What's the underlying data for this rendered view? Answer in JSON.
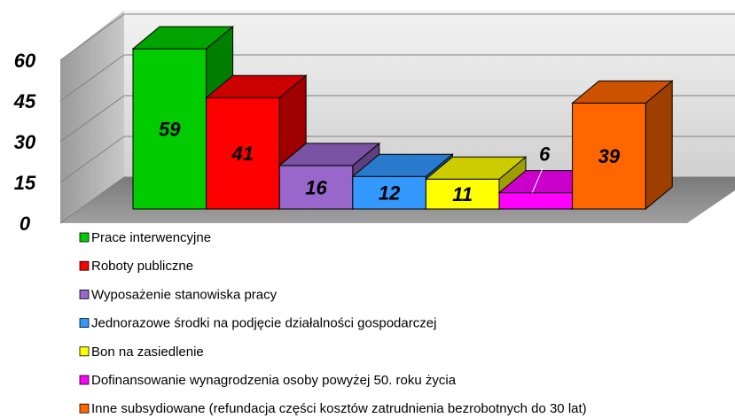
{
  "chart_data": {
    "type": "bar3d",
    "categories": [
      null
    ],
    "series": [
      {
        "name": "Prace interwencyjne",
        "color": "#00cc00",
        "values": [
          59
        ]
      },
      {
        "name": "Roboty publiczne",
        "color": "#ff0000",
        "values": [
          41
        ]
      },
      {
        "name": "Wyposażenie stanowiska pracy",
        "color": "#9966cc",
        "values": [
          16
        ]
      },
      {
        "name": "Jednorazowe środki na podjęcie działalności gospodarczej",
        "color": "#3399ff",
        "values": [
          12
        ]
      },
      {
        "name": "Bon na zasiedlenie",
        "color": "#ffff00",
        "values": [
          11
        ]
      },
      {
        "name": "Dofinansowanie wynagrodzenia osoby powyżej 50. roku życia",
        "color": "#ff00ff",
        "values": [
          6
        ]
      },
      {
        "name": "Inne subsydiowane (refundacja części kosztów zatrudnienia bezrobotnych do 30 lat)",
        "color": "#ff6600",
        "values": [
          39
        ]
      }
    ],
    "ylim": [
      0,
      60
    ],
    "yticks": [
      0,
      15,
      30,
      45,
      60
    ],
    "grid": true,
    "legend": "bottom"
  }
}
